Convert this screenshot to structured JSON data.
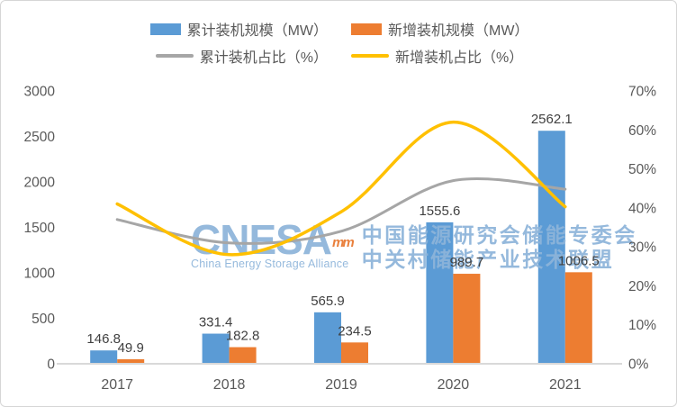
{
  "chart_data": {
    "type": "bar",
    "subtype": "combo-bar-line",
    "categories": [
      "2017",
      "2018",
      "2019",
      "2020",
      "2021"
    ],
    "series": [
      {
        "name": "累计装机规模（MW）",
        "kind": "bar",
        "axis": "left",
        "color": "#5b9bd5",
        "values": [
          146.8,
          331.4,
          565.9,
          1555.6,
          2562.1
        ]
      },
      {
        "name": "新增装机规模（MW）",
        "kind": "bar",
        "axis": "left",
        "color": "#ed7d31",
        "values": [
          49.9,
          182.8,
          234.5,
          989.7,
          1006.5
        ]
      },
      {
        "name": "累计装机占比（%）",
        "kind": "line",
        "axis": "right",
        "color": "#a6a6a6",
        "values": [
          37,
          31,
          34,
          47,
          44.8
        ]
      },
      {
        "name": "新增装机占比（%）",
        "kind": "line",
        "axis": "right",
        "color": "#ffc000",
        "values": [
          41,
          28,
          39,
          62,
          40.3
        ]
      }
    ],
    "bar_value_labels": [
      [
        "146.8",
        "331.4",
        "565.9",
        "1555.6",
        "2562.1"
      ],
      [
        "49.9",
        "182.8",
        "234.5",
        "989.7",
        "1006.5"
      ]
    ],
    "left_axis": {
      "min": 0,
      "max": 3000,
      "step": 500,
      "tick_labels": [
        "0",
        "500",
        "1000",
        "1500",
        "2000",
        "2500",
        "3000"
      ]
    },
    "right_axis": {
      "min": 0,
      "max": 70,
      "step": 10,
      "tick_labels": [
        "0%",
        "10%",
        "20%",
        "30%",
        "40%",
        "50%",
        "60%",
        "70%"
      ]
    },
    "grid": false,
    "smooth_lines": true,
    "legend_position": "top",
    "title": "",
    "xlabel": "",
    "ylabel": ""
  },
  "watermark": {
    "logo_text": "CNESA",
    "logo_mark": "mm",
    "logo_subtitle": "China Energy Storage Alliance",
    "line1": "中国能源研究会储能专委会",
    "line2": "中关村储能产业技术联盟",
    "color": "#8db4da",
    "accent_color": "#e8762d"
  },
  "colors": {
    "axis_line": "#d9d9d9",
    "tick_text": "#595959",
    "value_label_text": "#404040",
    "background": "#ffffff",
    "border": "#d6d6d6"
  }
}
